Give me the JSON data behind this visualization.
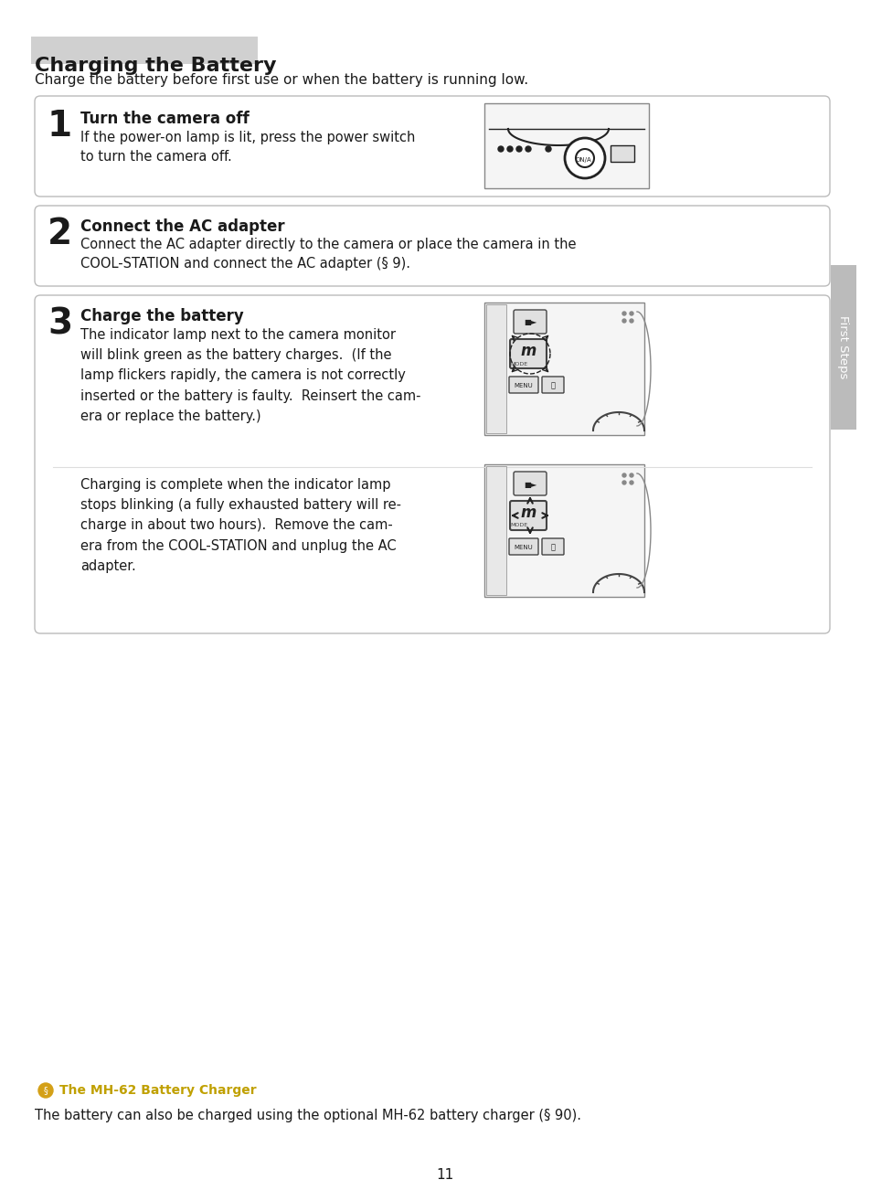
{
  "title": "Charging the Battery",
  "subtitle": "Charge the battery before first use or when the battery is running low.",
  "step1_num": "1",
  "step1_title": "Turn the camera off",
  "step1_body": "If the power-on lamp is lit, press the power switch\nto turn the camera off.",
  "step2_num": "2",
  "step2_title": "Connect the AC adapter",
  "step2_body": "Connect the AC adapter directly to the camera or place the camera in the\nCOOL-STATION and connect the AC adapter (§ 9).",
  "step3_num": "3",
  "step3_title": "Charge the battery",
  "step3_body1": "The indicator lamp next to the camera monitor\nwill blink green as the battery charges.  (If the\nlamp flickers rapidly, the camera is not correctly\ninserted or the battery is faulty.  Reinsert the cam-\nera or replace the battery.)",
  "step3_body2": "Charging is complete when the indicator lamp\nstops blinking (a fully exhausted battery will re-\ncharge in about two hours).  Remove the cam-\nera from the COOL-STATION and unplug the AC\nadapter.",
  "sidebar_text": "First Steps",
  "footer_icon_text": "The MH-62 Battery Charger",
  "footer_body": "The battery can also be charged using the optional MH-62 battery charger (§ 90).",
  "page_number": "11",
  "bg_color": "#ffffff",
  "box_bg": "#ffffff",
  "box_border": "#cccccc",
  "title_highlight": "#d0d0d0",
  "sidebar_bg": "#bbbbbb",
  "text_color": "#1a1a1a"
}
